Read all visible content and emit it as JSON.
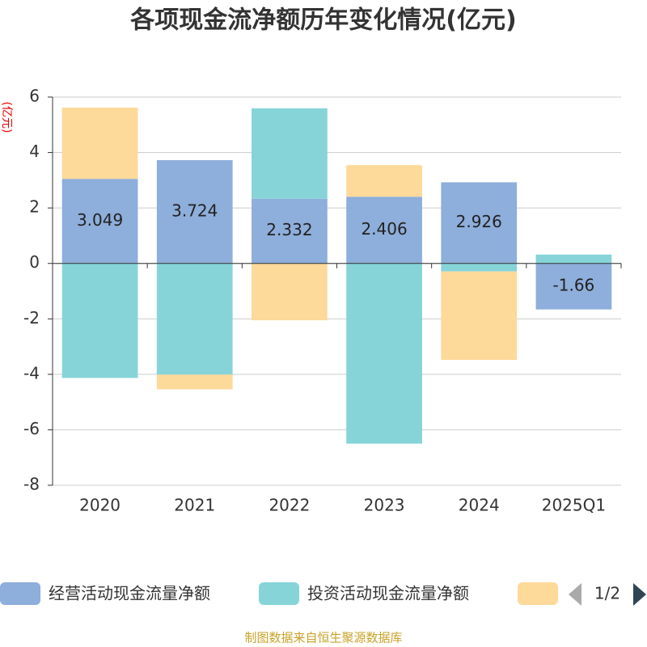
{
  "chart_data": {
    "type": "bar",
    "stacked": true,
    "title": "各项现金流净额历年变化情况(亿元)",
    "y_axis_label": "(亿元)",
    "categories": [
      "2020",
      "2021",
      "2022",
      "2023",
      "2024",
      "2025Q1"
    ],
    "series": [
      {
        "name": "经营活动现金流量净额",
        "color": "#8eaedb",
        "values": [
          3.049,
          3.724,
          2.332,
          2.406,
          2.926,
          -1.66
        ]
      },
      {
        "name": "投资活动现金流量净额",
        "color": "#86d4d8",
        "values": [
          -4.13,
          -4.01,
          3.26,
          -6.5,
          -0.29,
          0.32
        ]
      },
      {
        "color": "#fdd99a",
        "values": [
          2.57,
          -0.53,
          -2.05,
          1.14,
          -3.19,
          0
        ]
      }
    ],
    "ylim": [
      -8,
      6
    ],
    "yticks": [
      -8,
      -6,
      -4,
      -2,
      0,
      2,
      4,
      6
    ],
    "grid": true,
    "legend_page": "1/2",
    "source": "制图数据来自恒生聚源数据库"
  }
}
